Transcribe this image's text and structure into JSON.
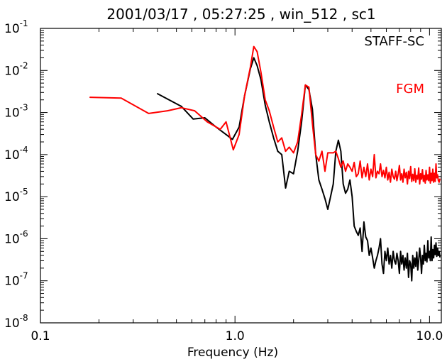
{
  "chart_data": {
    "type": "line",
    "title": "2001/03/17 , 05:27:25 , win_512 , sc1",
    "xlabel": "Frequency (Hz)",
    "ylabel": "",
    "xscale": "log",
    "yscale": "log",
    "xlim": [
      0.1,
      11.5
    ],
    "ylim": [
      1e-08,
      0.1
    ],
    "x_ticks": [
      0.1,
      1.0,
      10.0
    ],
    "x_tick_labels": [
      "0.1",
      "1.0",
      "10.0"
    ],
    "y_ticks": [
      1e-08,
      1e-07,
      1e-06,
      1e-05,
      0.0001,
      0.001,
      0.01,
      0.1
    ],
    "y_tick_labels": [
      {
        "base": "10",
        "exp": "-8"
      },
      {
        "base": "10",
        "exp": "-7"
      },
      {
        "base": "10",
        "exp": "-6"
      },
      {
        "base": "10",
        "exp": "-5"
      },
      {
        "base": "10",
        "exp": "-4"
      },
      {
        "base": "10",
        "exp": "-3"
      },
      {
        "base": "10",
        "exp": "-2"
      },
      {
        "base": "10",
        "exp": "-1"
      }
    ],
    "legend_position": "top-right",
    "series": [
      {
        "name": "STAFF-SC",
        "color": "#000000",
        "x": [
          0.4,
          0.53,
          0.61,
          0.7,
          0.8,
          0.9,
          0.97,
          1.05,
          1.12,
          1.2,
          1.25,
          1.3,
          1.36,
          1.43,
          1.5,
          1.58,
          1.66,
          1.74,
          1.82,
          1.9,
          2.0,
          2.1,
          2.2,
          2.3,
          2.4,
          2.5,
          2.6,
          2.7,
          2.8,
          2.9,
          3.0,
          3.1,
          3.2,
          3.3,
          3.4,
          3.5,
          3.6,
          3.7,
          3.8,
          3.9,
          4.0,
          4.1,
          4.2,
          4.3,
          4.4,
          4.5,
          4.6,
          4.7,
          4.8,
          4.9,
          5.0,
          5.1,
          5.2,
          5.3,
          5.4,
          5.5,
          5.6,
          5.7,
          5.8,
          5.9,
          6.0,
          6.1,
          6.2,
          6.3,
          6.4,
          6.5,
          6.6,
          6.7,
          6.8,
          6.9,
          7.0,
          7.1,
          7.2,
          7.3,
          7.4,
          7.5,
          7.6,
          7.7,
          7.8,
          7.9,
          8.0,
          8.1,
          8.2,
          8.3,
          8.4,
          8.5,
          8.6,
          8.7,
          8.8,
          8.9,
          9.0,
          9.1,
          9.2,
          9.3,
          9.4,
          9.5,
          9.6,
          9.7,
          9.8,
          9.9,
          10.0,
          10.1,
          10.2,
          10.3,
          10.4,
          10.5,
          10.6,
          10.7,
          10.8,
          10.9,
          11.0,
          11.1,
          11.2,
          11.3
        ],
        "y": [
          0.0028,
          0.0014,
          0.0007,
          0.00075,
          0.00045,
          0.0003,
          0.00023,
          0.00045,
          0.0025,
          0.011,
          0.02,
          0.013,
          0.006,
          0.0015,
          0.0006,
          0.00025,
          0.00012,
          0.0001,
          1.6e-05,
          4e-05,
          3.5e-05,
          0.00012,
          0.0006,
          0.0045,
          0.0035,
          0.0012,
          0.0001,
          2.5e-05,
          1.5e-05,
          9e-06,
          5e-06,
          1e-05,
          2e-05,
          0.00012,
          0.00022,
          0.00012,
          2e-05,
          1.2e-05,
          1.5e-05,
          2.5e-05,
          1e-05,
          2e-06,
          1.5e-06,
          1.2e-06,
          1.8e-06,
          5e-07,
          2.5e-06,
          1.1e-06,
          9e-07,
          4e-07,
          6e-07,
          3.5e-07,
          2e-07,
          3e-07,
          4e-07,
          6e-07,
          1e-06,
          2.5e-07,
          1.5e-07,
          5e-07,
          3e-07,
          6e-07,
          2.5e-07,
          4e-07,
          2e-07,
          5e-07,
          3e-07,
          2.5e-07,
          4.5e-07,
          3e-07,
          1.5e-07,
          5e-07,
          2.5e-07,
          4e-07,
          1.8e-07,
          3.5e-07,
          2e-07,
          4.5e-07,
          1.2e-07,
          3e-07,
          2.5e-07,
          1e-07,
          4e-07,
          2e-07,
          3.5e-07,
          2.2e-07,
          4.8e-07,
          1.8e-07,
          3e-07,
          6e-07,
          3.5e-07,
          1.5e-07,
          4e-07,
          2.5e-07,
          7e-07,
          3e-07,
          4.5e-07,
          2.8e-07,
          9e-07,
          3.5e-07,
          5e-07,
          3e-07,
          1.1e-06,
          3e-07,
          5.5e-07,
          3.5e-07,
          7e-07,
          4.2e-07,
          8e-07,
          3.8e-07,
          6e-07,
          4e-07,
          5e-07,
          3.7e-07
        ]
      },
      {
        "name": "FGM",
        "color": "#ff0000",
        "x": [
          0.18,
          0.26,
          0.36,
          0.45,
          0.53,
          0.62,
          0.72,
          0.84,
          0.9,
          0.98,
          1.05,
          1.12,
          1.2,
          1.25,
          1.3,
          1.36,
          1.43,
          1.5,
          1.58,
          1.66,
          1.74,
          1.82,
          1.9,
          2.0,
          2.1,
          2.2,
          2.3,
          2.4,
          2.5,
          2.6,
          2.7,
          2.8,
          2.9,
          3.0,
          3.1,
          3.2,
          3.3,
          3.4,
          3.5,
          3.6,
          3.7,
          3.8,
          3.9,
          4.0,
          4.1,
          4.2,
          4.3,
          4.4,
          4.5,
          4.6,
          4.7,
          4.8,
          4.9,
          5.0,
          5.1,
          5.2,
          5.3,
          5.4,
          5.5,
          5.6,
          5.7,
          5.8,
          5.9,
          6.0,
          6.1,
          6.2,
          6.3,
          6.4,
          6.5,
          6.6,
          6.7,
          6.8,
          6.9,
          7.0,
          7.1,
          7.2,
          7.3,
          7.4,
          7.5,
          7.6,
          7.7,
          7.8,
          7.9,
          8.0,
          8.1,
          8.2,
          8.3,
          8.4,
          8.5,
          8.6,
          8.7,
          8.8,
          8.9,
          9.0,
          9.1,
          9.2,
          9.3,
          9.4,
          9.5,
          9.6,
          9.7,
          9.8,
          9.9,
          10.0,
          10.1,
          10.2,
          10.3,
          10.4,
          10.5,
          10.6,
          10.7,
          10.8,
          10.9,
          11.0,
          11.1,
          11.2,
          11.3
        ],
        "y": [
          0.0023,
          0.0022,
          0.00095,
          0.0011,
          0.0013,
          0.0011,
          0.0006,
          0.0004,
          0.0006,
          0.00013,
          0.0003,
          0.0025,
          0.012,
          0.037,
          0.028,
          0.009,
          0.002,
          0.0011,
          0.00045,
          0.0002,
          0.00025,
          0.00012,
          0.00015,
          0.00011,
          0.0002,
          0.0009,
          0.0045,
          0.004,
          0.00055,
          0.0001,
          7e-05,
          0.00012,
          4e-05,
          0.00011,
          0.00011,
          0.00011,
          0.00012,
          8e-05,
          5e-05,
          7e-05,
          4e-05,
          6e-05,
          5e-05,
          4e-05,
          6.5e-05,
          3e-05,
          3.5e-05,
          7e-05,
          2.8e-05,
          5e-05,
          3e-05,
          6e-05,
          2.5e-05,
          4.5e-05,
          3e-05,
          0.0001,
          2.8e-05,
          4e-05,
          3.5e-05,
          6e-05,
          3e-05,
          4.2e-05,
          2.8e-05,
          5e-05,
          2.5e-05,
          3.8e-05,
          2.2e-05,
          4.5e-05,
          3e-05,
          2.6e-05,
          4e-05,
          2.4e-05,
          3.5e-05,
          5.5e-05,
          2.5e-05,
          3.5e-05,
          2.2e-05,
          4.5e-05,
          2.8e-05,
          3.8e-05,
          2e-05,
          4e-05,
          2.7e-05,
          5.2e-05,
          2.3e-05,
          3.4e-05,
          2.4e-05,
          4.6e-05,
          2.2e-05,
          3.2e-05,
          2.6e-05,
          4.8e-05,
          2e-05,
          3.5e-05,
          2.6e-05,
          4.4e-05,
          2.3e-05,
          3.2e-05,
          2.1e-05,
          4.2e-05,
          2.5e-05,
          3.3e-05,
          2.4e-05,
          5e-05,
          2.1e-05,
          3.6e-05,
          2.4e-05,
          4.5e-05,
          2.2e-05,
          3.6e-05,
          2.3e-05,
          6e-05,
          2.8e-05,
          3.3e-05,
          2.4e-05,
          2.2e-05,
          2.6e-05
        ]
      }
    ]
  }
}
